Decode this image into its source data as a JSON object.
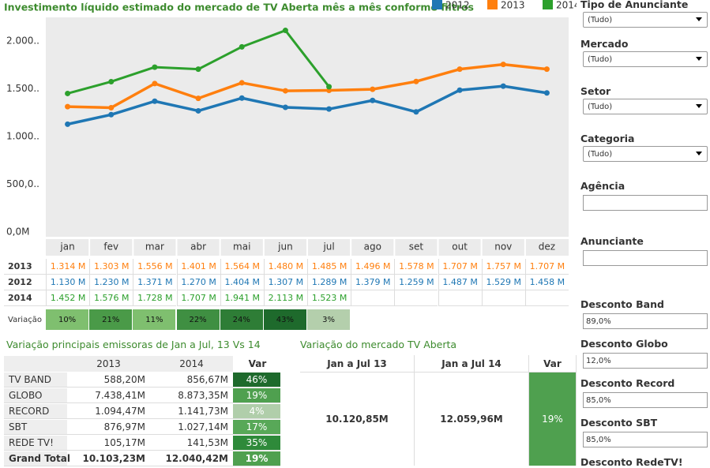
{
  "chart_data": {
    "type": "line",
    "title": "Investimento líquido estimado do mercado de TV Aberta mês a mês conforme filtros",
    "categories": [
      "jan",
      "fev",
      "mar",
      "abr",
      "mai",
      "jun",
      "jul",
      "ago",
      "set",
      "out",
      "nov",
      "dez"
    ],
    "series": [
      {
        "name": "2012",
        "color": "#1f77b4",
        "values": [
          1130,
          1230,
          1371,
          1270,
          1404,
          1307,
          1289,
          1379,
          1259,
          1487,
          1529,
          1458
        ],
        "value_labels": [
          "1.130 M",
          "1.230 M",
          "1.371 M",
          "1.270 M",
          "1.404 M",
          "1.307 M",
          "1.289 M",
          "1.379 M",
          "1.259 M",
          "1.487 M",
          "1.529 M",
          "1.458 M"
        ]
      },
      {
        "name": "2013",
        "color": "#ff7f0e",
        "values": [
          1314,
          1303,
          1556,
          1401,
          1564,
          1480,
          1485,
          1496,
          1578,
          1707,
          1757,
          1707
        ],
        "value_labels": [
          "1.314 M",
          "1.303 M",
          "1.556 M",
          "1.401 M",
          "1.564 M",
          "1.480 M",
          "1.485 M",
          "1.496 M",
          "1.578 M",
          "1.707 M",
          "1.757 M",
          "1.707 M"
        ]
      },
      {
        "name": "2014",
        "color": "#2ca02c",
        "values": [
          1452,
          1576,
          1728,
          1707,
          1941,
          2113,
          1523,
          null,
          null,
          null,
          null,
          null
        ],
        "value_labels": [
          "1.452 M",
          "1.576 M",
          "1.728 M",
          "1.707 M",
          "1.941 M",
          "2.113 M",
          "1.523 M",
          null,
          null,
          null,
          null,
          null
        ]
      }
    ],
    "table_order": [
      1,
      0,
      2
    ],
    "ylim": [
      -50,
      2250
    ],
    "yticks": [
      {
        "value": 0,
        "label": "0,0M"
      },
      {
        "value": 500,
        "label": "500,0.."
      },
      {
        "value": 1000,
        "label": "1.000.."
      },
      {
        "value": 1500,
        "label": "1.500.."
      },
      {
        "value": 2000,
        "label": "2.000.."
      }
    ],
    "grid": false
  },
  "variacao": {
    "label": "Variação",
    "cells": [
      "10%",
      "21%",
      "11%",
      "22%",
      "24%",
      "43%",
      "3%"
    ],
    "colors": [
      "#7fbf6f",
      "#4a9a48",
      "#7fbf6f",
      "#3f8f42",
      "#2e7d36",
      "#1e6a2c",
      "#b4cfac"
    ]
  },
  "emissoras": {
    "title": "Variação principais emissoras de Jan a Jul, 13 Vs 14",
    "header": [
      "2013",
      "2014",
      "Var"
    ],
    "rows": [
      [
        "TV BAND",
        "588,20M",
        "856,67M",
        "46%"
      ],
      [
        "GLOBO",
        "7.438,41M",
        "8.873,35M",
        "19%"
      ],
      [
        "RECORD",
        "1.094,47M",
        "1.141,73M",
        "4%"
      ],
      [
        "SBT",
        "876,97M",
        "1.027,14M",
        "17%"
      ],
      [
        "REDE TV!",
        "105,17M",
        "141,53M",
        "35%"
      ],
      [
        "Grand Total",
        "10.103,23M",
        "12.040,42M",
        "19%"
      ]
    ],
    "var_colors": [
      "#1e6a2c",
      "#4fa04f",
      "#b0ceaa",
      "#58a858",
      "#2e8a3a",
      "#4fa04f"
    ]
  },
  "mercado": {
    "title": "Variação do mercado TV Aberta",
    "header": [
      "Jan a Jul 13",
      "Jan a Jul 14",
      "Var"
    ],
    "row": [
      "10.120,85M",
      "12.059,96M",
      "19%"
    ],
    "var_color": "#4fa04f"
  },
  "filters": [
    {
      "label": "Tipo de Anunciante",
      "value": "(Tudo)"
    },
    {
      "label": "Mercado",
      "value": "(Tudo)"
    },
    {
      "label": "Setor",
      "value": "(Tudo)"
    },
    {
      "label": "Categoria",
      "value": "(Tudo)"
    },
    {
      "label": "Agência"
    },
    {
      "label": "Anunciante"
    },
    {
      "label": "Desconto Band",
      "value": "89,0%"
    },
    {
      "label": "Desconto Globo",
      "value": "12,0%"
    },
    {
      "label": "Desconto Record",
      "value": "85,0%"
    },
    {
      "label": "Desconto SBT",
      "value": "85,0%"
    },
    {
      "label": "Desconto RedeTV!"
    }
  ]
}
